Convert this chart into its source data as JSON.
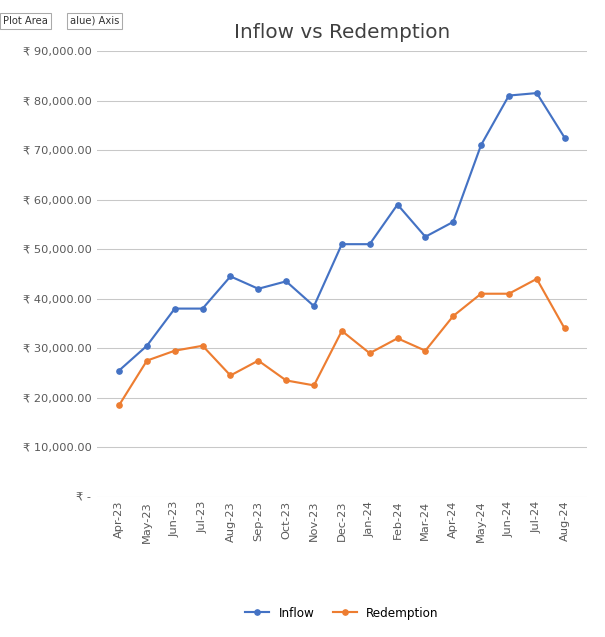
{
  "title": "Inflow vs Redemption",
  "categories": [
    "Apr-23",
    "May-23",
    "Jun-23",
    "Jul-23",
    "Aug-23",
    "Sep-23",
    "Oct-23",
    "Nov-23",
    "Dec-23",
    "Jan-24",
    "Feb-24",
    "Mar-24",
    "Apr-24",
    "May-24",
    "Jun-24",
    "Jul-24",
    "Aug-24"
  ],
  "inflow": [
    25500,
    30500,
    38000,
    38000,
    44500,
    42000,
    43500,
    38500,
    51000,
    51000,
    59000,
    52500,
    55500,
    71000,
    81000,
    81500,
    72500
  ],
  "redemption": [
    18500,
    27500,
    29500,
    30500,
    24500,
    27500,
    23500,
    22500,
    33500,
    29000,
    32000,
    29500,
    36500,
    41000,
    41000,
    44000,
    34000
  ],
  "inflow_color": "#4472C4",
  "redemption_color": "#ED7D31",
  "marker": "o",
  "markersize": 4,
  "linewidth": 1.6,
  "ylim": [
    0,
    90000
  ],
  "yticks": [
    0,
    10000,
    20000,
    30000,
    40000,
    50000,
    60000,
    70000,
    80000,
    90000
  ],
  "background_color": "#FFFFFF",
  "plot_area_color": "#FFFFFF",
  "grid_color": "#C8C8C8",
  "legend_labels": [
    "Inflow",
    "Redemption"
  ],
  "watermark_text1": "Plot Area",
  "watermark_text2": "alue) Axis",
  "title_fontsize": 15,
  "tick_fontsize": 8.5
}
